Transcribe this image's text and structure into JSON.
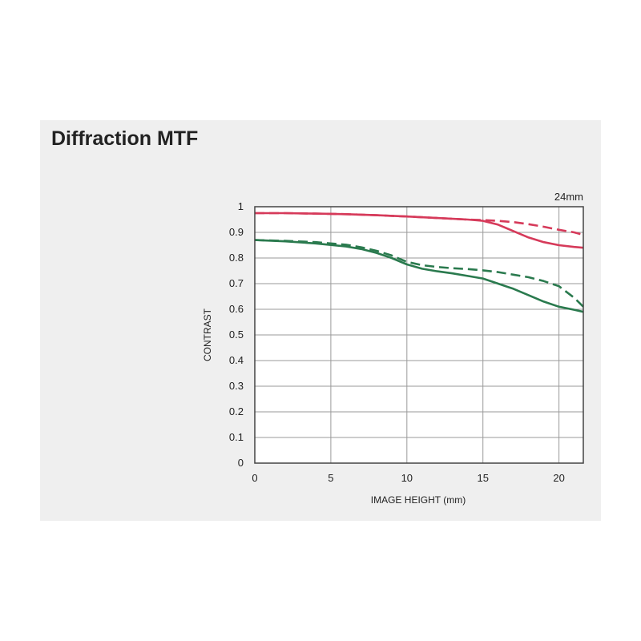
{
  "title": "Diffraction MTF",
  "chart_data": {
    "type": "line",
    "annotation": "24mm",
    "xlabel": "IMAGE HEIGHT (mm)",
    "ylabel": "CONTRAST",
    "xlim": [
      0,
      21.6
    ],
    "ylim": [
      0,
      1
    ],
    "xticks": [
      0,
      5,
      10,
      15,
      20
    ],
    "yticks": [
      0,
      0.1,
      0.2,
      0.3,
      0.4,
      0.5,
      0.6,
      0.7,
      0.8,
      0.9,
      1
    ],
    "ytick_labels": [
      "0",
      "0.1",
      "0.2",
      "0.3",
      "0.4",
      "0.5",
      "0.6",
      "0.7",
      "0.8",
      "0.9",
      "1"
    ],
    "grid": true,
    "series": [
      {
        "color": "#d63a5a",
        "dash": "solid",
        "x": [
          0,
          2,
          4,
          6,
          8,
          10,
          12,
          14,
          15,
          16,
          17,
          18,
          19,
          20,
          21,
          21.6
        ],
        "y": [
          0.975,
          0.975,
          0.973,
          0.971,
          0.967,
          0.962,
          0.956,
          0.95,
          0.945,
          0.93,
          0.905,
          0.88,
          0.862,
          0.85,
          0.843,
          0.84
        ]
      },
      {
        "color": "#d63a5a",
        "dash": "dashed",
        "x": [
          0,
          2,
          4,
          6,
          8,
          10,
          12,
          14,
          15,
          16,
          17,
          18,
          19,
          20,
          21,
          21.6
        ],
        "y": [
          0.975,
          0.975,
          0.973,
          0.971,
          0.967,
          0.962,
          0.956,
          0.95,
          0.948,
          0.945,
          0.94,
          0.932,
          0.922,
          0.91,
          0.9,
          0.89
        ]
      },
      {
        "color": "#2a7a4e",
        "dash": "solid",
        "x": [
          0,
          2,
          4,
          6,
          7,
          8,
          9,
          10,
          11,
          12,
          13,
          14,
          15,
          16,
          17,
          18,
          19,
          20,
          21,
          21.6
        ],
        "y": [
          0.87,
          0.865,
          0.857,
          0.845,
          0.835,
          0.82,
          0.8,
          0.775,
          0.758,
          0.748,
          0.74,
          0.73,
          0.72,
          0.7,
          0.68,
          0.655,
          0.63,
          0.61,
          0.598,
          0.59
        ]
      },
      {
        "color": "#2a7a4e",
        "dash": "dashed",
        "x": [
          0,
          2,
          4,
          6,
          7,
          8,
          9,
          10,
          11,
          12,
          13,
          14,
          15,
          16,
          17,
          18,
          19,
          20,
          21,
          21.6
        ],
        "y": [
          0.87,
          0.867,
          0.862,
          0.852,
          0.842,
          0.828,
          0.81,
          0.785,
          0.772,
          0.765,
          0.76,
          0.757,
          0.752,
          0.745,
          0.735,
          0.725,
          0.71,
          0.69,
          0.645,
          0.61
        ]
      }
    ]
  }
}
